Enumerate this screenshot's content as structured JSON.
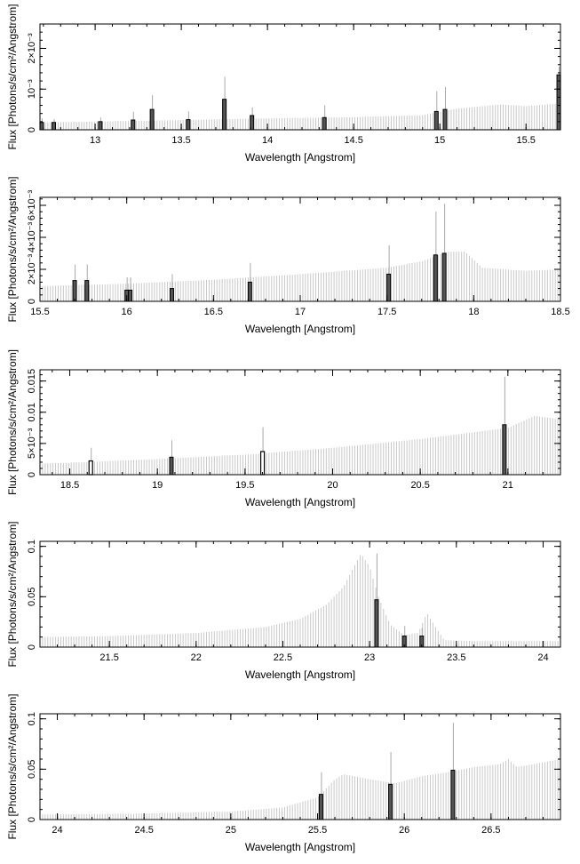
{
  "figure": {
    "xlabel": "Wavelength [Angstrom]",
    "ylabel": "Flux [Photons/s/cm²/Angstrom]"
  },
  "chart_data": [
    {
      "type": "bar",
      "xlabel": "Wavelength [Angstrom]",
      "ylabel": "Flux [Photons/s/cm²/Angstrom]",
      "xlim": [
        12.68,
        15.7
      ],
      "ylim": [
        0,
        0.0026
      ],
      "xticks": [
        13,
        13.5,
        14,
        14.5,
        15,
        15.5
      ],
      "xtick_labels": [
        "13",
        "13.5",
        "14",
        "14.5",
        "15",
        "15.5"
      ],
      "yticks": [
        0,
        0.001,
        0.002
      ],
      "ytick_labels": [
        "0",
        "10⁻³",
        "2×10⁻³"
      ],
      "continuum": [
        [
          12.68,
          0.00018
        ],
        [
          13.0,
          0.0002
        ],
        [
          13.5,
          0.00024
        ],
        [
          14.0,
          0.00028
        ],
        [
          14.5,
          0.00031
        ],
        [
          14.9,
          0.00036
        ],
        [
          15.1,
          0.00052
        ],
        [
          15.35,
          0.00062
        ],
        [
          15.5,
          0.00058
        ],
        [
          15.7,
          0.00065
        ]
      ],
      "lines": [
        {
          "x": 12.69,
          "y": 0.00018,
          "err": 0.0001,
          "style": "dark"
        },
        {
          "x": 12.76,
          "y": 0.00018,
          "err": 8e-05,
          "style": "dark"
        },
        {
          "x": 13.03,
          "y": 0.0002,
          "err": 0.0001,
          "style": "dark"
        },
        {
          "x": 13.22,
          "y": 0.00024,
          "err": 0.0002,
          "style": "dark"
        },
        {
          "x": 13.33,
          "y": 0.0005,
          "err": 0.00035,
          "style": "dark"
        },
        {
          "x": 13.54,
          "y": 0.00025,
          "err": 0.0002,
          "style": "dark"
        },
        {
          "x": 13.75,
          "y": 0.00075,
          "err": 0.00055,
          "style": "dark"
        },
        {
          "x": 13.91,
          "y": 0.00035,
          "err": 0.0002,
          "style": "dark"
        },
        {
          "x": 14.33,
          "y": 0.0003,
          "err": 0.0003,
          "style": "dark"
        },
        {
          "x": 14.98,
          "y": 0.00045,
          "err": 0.0005,
          "style": "dark"
        },
        {
          "x": 15.03,
          "y": 0.0005,
          "err": 0.00055,
          "style": "dark"
        },
        {
          "x": 15.69,
          "y": 0.00135,
          "err": 0.0002,
          "style": "dark"
        }
      ]
    },
    {
      "type": "bar",
      "xlabel": "Wavelength [Angstrom]",
      "ylabel": "Flux [Photons/s/cm²/Angstrom]",
      "xlim": [
        15.5,
        18.5
      ],
      "ylim": [
        0,
        0.0065
      ],
      "xticks": [
        15.5,
        16,
        16.5,
        17,
        17.5,
        18,
        18.5
      ],
      "xtick_labels": [
        "15.5",
        "16",
        "16.5",
        "17",
        "17.5",
        "18",
        "18.5"
      ],
      "yticks": [
        0,
        0.002,
        0.004,
        0.006
      ],
      "ytick_labels": [
        "0",
        "2×10⁻³",
        "4×10⁻³",
        "6×10⁻³"
      ],
      "continuum": [
        [
          15.5,
          0.00095
        ],
        [
          16.0,
          0.0011
        ],
        [
          16.5,
          0.00135
        ],
        [
          17.0,
          0.0017
        ],
        [
          17.5,
          0.0021
        ],
        [
          17.7,
          0.0025
        ],
        [
          17.85,
          0.0031
        ],
        [
          17.95,
          0.0031
        ],
        [
          18.05,
          0.0021
        ],
        [
          18.3,
          0.0019
        ],
        [
          18.5,
          0.002
        ]
      ],
      "lines": [
        {
          "x": 15.7,
          "y": 0.0013,
          "err": 0.001,
          "style": "dark"
        },
        {
          "x": 15.77,
          "y": 0.0013,
          "err": 0.001,
          "style": "dark"
        },
        {
          "x": 16.0,
          "y": 0.0007,
          "err": 0.0008,
          "style": "dark"
        },
        {
          "x": 16.02,
          "y": 0.0007,
          "err": 0.0008,
          "style": "dark"
        },
        {
          "x": 16.26,
          "y": 0.0008,
          "err": 0.0009,
          "style": "dark"
        },
        {
          "x": 16.71,
          "y": 0.0012,
          "err": 0.0012,
          "style": "dark"
        },
        {
          "x": 17.51,
          "y": 0.0017,
          "err": 0.0018,
          "style": "dark"
        },
        {
          "x": 17.78,
          "y": 0.0029,
          "err": 0.0027,
          "style": "dark"
        },
        {
          "x": 17.83,
          "y": 0.003,
          "err": 0.0031,
          "style": "dark"
        }
      ]
    },
    {
      "type": "bar",
      "xlabel": "Wavelength [Angstrom]",
      "ylabel": "Flux [Photons/s/cm²/Angstrom]",
      "xlim": [
        18.33,
        21.3
      ],
      "ylim": [
        0,
        0.0168
      ],
      "xticks": [
        18.5,
        19,
        19.5,
        20,
        20.5,
        21
      ],
      "xtick_labels": [
        "18.5",
        "19",
        "19.5",
        "20",
        "20.5",
        "21"
      ],
      "yticks": [
        0,
        0.005,
        0.01,
        0.015
      ],
      "ytick_labels": [
        "0",
        "5×10⁻³",
        "0.01",
        "0.015"
      ],
      "continuum": [
        [
          18.33,
          0.0018
        ],
        [
          18.5,
          0.0019
        ],
        [
          19.0,
          0.0025
        ],
        [
          19.5,
          0.0032
        ],
        [
          20.0,
          0.0043
        ],
        [
          20.5,
          0.0057
        ],
        [
          21.0,
          0.0075
        ],
        [
          21.15,
          0.0094
        ],
        [
          21.3,
          0.0089
        ]
      ],
      "lines": [
        {
          "x": 18.62,
          "y": 0.0022,
          "err": 0.0021,
          "style": "open"
        },
        {
          "x": 19.08,
          "y": 0.0028,
          "err": 0.0027,
          "style": "dark"
        },
        {
          "x": 19.6,
          "y": 0.0037,
          "err": 0.0039,
          "style": "open"
        },
        {
          "x": 20.98,
          "y": 0.008,
          "err": 0.0077,
          "style": "dark"
        }
      ]
    },
    {
      "type": "bar",
      "xlabel": "Wavelength [Angstrom]",
      "ylabel": "Flux [Photons/s/cm²/Angstrom]",
      "xlim": [
        21.1,
        24.1
      ],
      "ylim": [
        0,
        0.105
      ],
      "xticks": [
        21.5,
        22,
        22.5,
        23,
        23.5,
        24
      ],
      "xtick_labels": [
        "21.5",
        "22",
        "22.5",
        "23",
        "23.5",
        "24"
      ],
      "yticks": [
        0,
        0.05,
        0.1
      ],
      "ytick_labels": [
        "0",
        "0.05",
        "0.1"
      ],
      "continuum": [
        [
          21.1,
          0.01
        ],
        [
          21.5,
          0.011
        ],
        [
          22.0,
          0.014
        ],
        [
          22.4,
          0.02
        ],
        [
          22.6,
          0.028
        ],
        [
          22.75,
          0.042
        ],
        [
          22.85,
          0.06
        ],
        [
          22.95,
          0.093
        ],
        [
          23.0,
          0.08
        ],
        [
          23.05,
          0.05
        ],
        [
          23.12,
          0.022
        ],
        [
          23.2,
          0.012
        ],
        [
          23.28,
          0.014
        ],
        [
          23.33,
          0.034
        ],
        [
          23.38,
          0.02
        ],
        [
          23.43,
          0.007
        ],
        [
          23.6,
          0.006
        ],
        [
          24.1,
          0.006
        ]
      ],
      "lines": [
        {
          "x": 23.04,
          "y": 0.047,
          "err": 0.046,
          "style": "dark"
        },
        {
          "x": 23.2,
          "y": 0.011,
          "err": 0.01,
          "style": "dark"
        },
        {
          "x": 23.3,
          "y": 0.011,
          "err": 0.008,
          "style": "dark"
        }
      ]
    },
    {
      "type": "bar",
      "xlabel": "Wavelength [Angstrom]",
      "ylabel": "Flux [Photons/s/cm²/Angstrom]",
      "xlim": [
        23.9,
        26.9
      ],
      "ylim": [
        0,
        0.105
      ],
      "xticks": [
        24,
        24.5,
        25,
        25.5,
        26,
        26.5
      ],
      "xtick_labels": [
        "24",
        "24.5",
        "25",
        "25.5",
        "26",
        "26.5"
      ],
      "yticks": [
        0,
        0.05,
        0.1
      ],
      "ytick_labels": [
        "0",
        "0.05",
        "0.1"
      ],
      "continuum": [
        [
          23.9,
          0.005
        ],
        [
          24.5,
          0.006
        ],
        [
          25.0,
          0.008
        ],
        [
          25.3,
          0.012
        ],
        [
          25.5,
          0.022
        ],
        [
          25.6,
          0.04
        ],
        [
          25.65,
          0.045
        ],
        [
          25.8,
          0.04
        ],
        [
          25.95,
          0.036
        ],
        [
          26.1,
          0.043
        ],
        [
          26.25,
          0.047
        ],
        [
          26.4,
          0.052
        ],
        [
          26.55,
          0.055
        ],
        [
          26.6,
          0.06
        ],
        [
          26.65,
          0.052
        ],
        [
          26.9,
          0.06
        ]
      ],
      "lines": [
        {
          "x": 25.52,
          "y": 0.025,
          "err": 0.022,
          "style": "dark"
        },
        {
          "x": 25.92,
          "y": 0.035,
          "err": 0.032,
          "style": "dark"
        },
        {
          "x": 26.28,
          "y": 0.049,
          "err": 0.047,
          "style": "dark"
        }
      ]
    }
  ]
}
